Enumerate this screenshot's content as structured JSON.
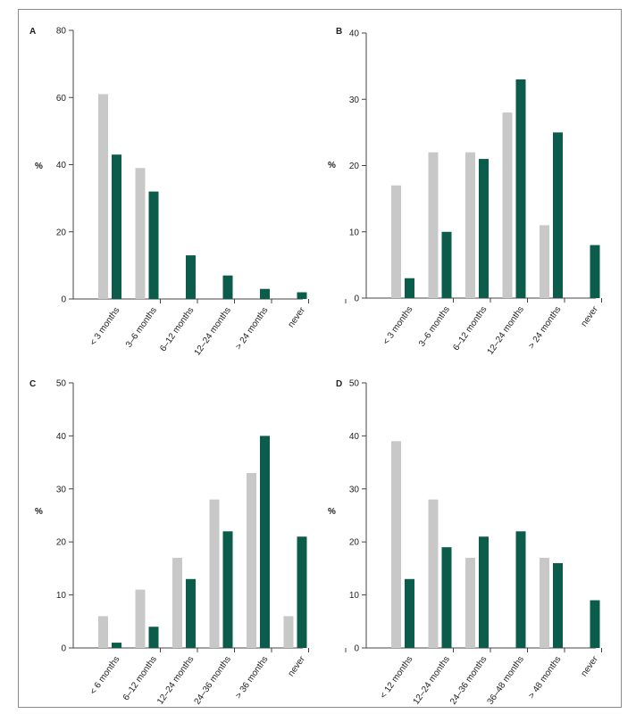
{
  "colors": {
    "series_a": "#c8c8c8",
    "series_b": "#0b5c4b",
    "axis": "#444444"
  },
  "chart_data": [
    {
      "panel": "A",
      "type": "bar",
      "ylabel": "%",
      "ylim": [
        0,
        80
      ],
      "yticks": [
        0,
        20,
        40,
        60,
        80
      ],
      "categories": [
        "< 3 months",
        "3–6 months",
        "6–12 months",
        "12–24 months",
        "> 24 months",
        "never"
      ],
      "series": [
        {
          "values": [
            61,
            39,
            null,
            null,
            null,
            null
          ]
        },
        {
          "values": [
            43,
            32,
            13,
            7,
            3,
            2
          ]
        }
      ]
    },
    {
      "panel": "B",
      "type": "bar",
      "ylabel": "%",
      "ylim": [
        0,
        40
      ],
      "yticks": [
        0,
        10,
        20,
        30,
        40
      ],
      "categories": [
        "< 3 months",
        "3–6 months",
        "6–12 months",
        "12–24 months",
        "> 24 months",
        "never"
      ],
      "series": [
        {
          "values": [
            17,
            22,
            22,
            28,
            11,
            null
          ]
        },
        {
          "values": [
            3,
            10,
            21,
            33,
            25,
            8
          ]
        }
      ]
    },
    {
      "panel": "C",
      "type": "bar",
      "ylabel": "%",
      "ylim": [
        0,
        50
      ],
      "yticks": [
        0,
        10,
        20,
        30,
        40,
        50
      ],
      "categories": [
        "< 6 months",
        "6–12 months",
        "12–24 months",
        "24–36 months",
        "> 36 months",
        "never"
      ],
      "series": [
        {
          "values": [
            6,
            11,
            17,
            28,
            33,
            6
          ]
        },
        {
          "values": [
            1,
            4,
            13,
            22,
            40,
            21
          ]
        }
      ]
    },
    {
      "panel": "D",
      "type": "bar",
      "ylabel": "%",
      "ylim": [
        0,
        50
      ],
      "yticks": [
        0,
        10,
        20,
        30,
        40,
        50
      ],
      "categories": [
        "< 12 months",
        "12–24 months",
        "24–36 months",
        "36–48 months",
        "> 48 months",
        "never"
      ],
      "series": [
        {
          "values": [
            39,
            28,
            17,
            null,
            17,
            null
          ]
        },
        {
          "values": [
            13,
            19,
            21,
            22,
            16,
            9
          ]
        }
      ]
    }
  ]
}
